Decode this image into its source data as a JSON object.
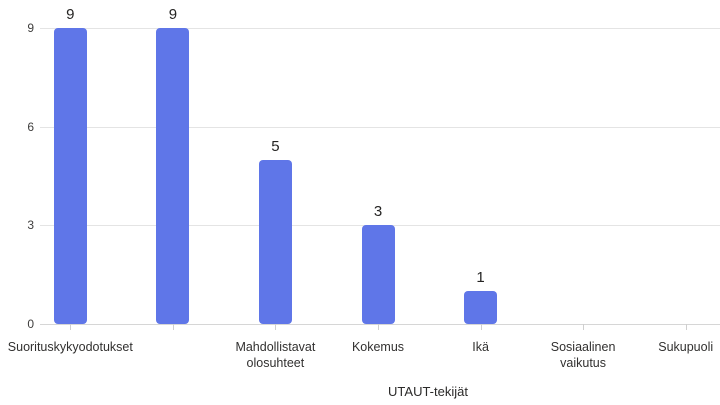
{
  "chart_data": {
    "type": "bar",
    "title": "",
    "xlabel": "UTAUT-tekijät",
    "ylabel": "",
    "ylim": [
      0,
      9
    ],
    "yticks": [
      0,
      3,
      6,
      9
    ],
    "grid": true,
    "legend": "none",
    "bar_color": "#5f76e8",
    "categories": [
      "Suorituskykyodotukset",
      "",
      "Mahdollistavat\nolosuhteet",
      "Kokemus",
      "Ikä",
      "Sosiaalinen\nvaikutus",
      "Sukupuoli"
    ],
    "values": [
      9,
      9,
      5,
      3,
      1,
      0,
      0
    ],
    "shown_data_labels": [
      "9",
      "9",
      "5",
      "3",
      "1",
      "",
      ""
    ]
  },
  "colors": {
    "bar": "#5f76e8",
    "gridline": "#e4e4e4",
    "axis_line": "#d6d6d6",
    "tick_mark": "#cfcfcf",
    "label_text": "#323130",
    "value_text": "#252423"
  }
}
